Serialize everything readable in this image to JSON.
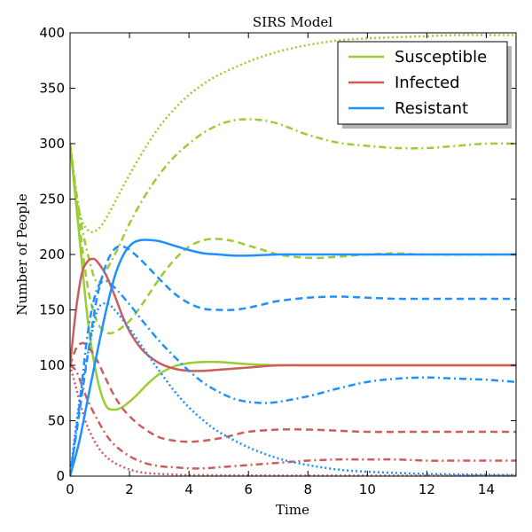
{
  "chart_data": {
    "type": "line",
    "title": "SIRS Model",
    "xlabel": "Time",
    "ylabel": "Number of People",
    "xlim": [
      0,
      15
    ],
    "ylim": [
      0,
      400
    ],
    "xticks": [
      0,
      2,
      4,
      6,
      8,
      10,
      12,
      14
    ],
    "yticks": [
      0,
      50,
      100,
      150,
      200,
      250,
      300,
      350,
      400
    ],
    "grid": false,
    "legend_position": "top-right",
    "legend": [
      {
        "label": "Susceptible",
        "color": "#9acd32"
      },
      {
        "label": "Infected",
        "color": "#cd5c5c"
      },
      {
        "label": "Resistant",
        "color": "#1e90ff"
      }
    ],
    "series": [
      {
        "group": "Susceptible",
        "color": "#9acd32",
        "style": "solid",
        "x": [
          0,
          0.3,
          0.6,
          0.9,
          1.2,
          1.5,
          1.8,
          2.2,
          2.6,
          3.0,
          3.5,
          4.0,
          4.5,
          5.0,
          5.5,
          6.0,
          7.0,
          8.0,
          10,
          12,
          15
        ],
        "y": [
          300,
          220,
          140,
          90,
          64,
          60,
          63,
          72,
          83,
          92,
          99,
          102,
          103,
          103,
          102,
          101,
          100,
          100,
          100,
          100,
          100
        ]
      },
      {
        "group": "Susceptible",
        "color": "#9acd32",
        "style": "dashed",
        "x": [
          0,
          0.3,
          0.6,
          0.9,
          1.2,
          1.5,
          2.0,
          2.5,
          3.0,
          3.5,
          4.0,
          4.5,
          5.0,
          5.5,
          6.0,
          6.5,
          7.0,
          7.5,
          8.0,
          8.5,
          9.0,
          10,
          11,
          12,
          15
        ],
        "y": [
          300,
          230,
          170,
          140,
          130,
          130,
          140,
          158,
          178,
          195,
          207,
          213,
          214,
          212,
          208,
          204,
          200,
          198,
          197,
          197,
          198,
          200,
          201,
          200,
          200
        ]
      },
      {
        "group": "Susceptible",
        "color": "#9acd32",
        "style": "dashdot",
        "x": [
          0,
          0.3,
          0.6,
          0.9,
          1.2,
          1.6,
          2.0,
          2.5,
          3.0,
          3.5,
          4.0,
          4.5,
          5.0,
          5.5,
          6.0,
          6.5,
          7.0,
          7.5,
          8.0,
          9.0,
          10,
          11,
          12,
          13,
          14,
          15
        ],
        "y": [
          300,
          240,
          200,
          175,
          185,
          205,
          228,
          252,
          272,
          288,
          300,
          310,
          317,
          321,
          322,
          321,
          318,
          313,
          308,
          301,
          298,
          296,
          296,
          298,
          300,
          300
        ]
      },
      {
        "group": "Susceptible",
        "color": "#9acd32",
        "style": "dotted",
        "x": [
          0,
          0.3,
          0.6,
          0.9,
          1.2,
          1.6,
          2.0,
          2.5,
          3.0,
          3.5,
          4.0,
          4.5,
          5.0,
          6.0,
          7.0,
          8.0,
          9.0,
          10,
          11,
          12,
          13,
          14,
          15
        ],
        "y": [
          300,
          240,
          222,
          222,
          232,
          252,
          272,
          295,
          315,
          331,
          344,
          354,
          362,
          374,
          383,
          389,
          393,
          395,
          396,
          397,
          398,
          398,
          398
        ]
      },
      {
        "group": "Infected",
        "color": "#cd5c5c",
        "style": "solid",
        "x": [
          0,
          0.2,
          0.4,
          0.6,
          0.75,
          0.9,
          1.2,
          1.5,
          1.8,
          2.1,
          2.5,
          3.0,
          3.5,
          4.0,
          4.5,
          5.0,
          6.0,
          7.0,
          8.0,
          10,
          12,
          15
        ],
        "y": [
          100,
          150,
          183,
          194,
          196,
          194,
          182,
          163,
          142,
          126,
          112,
          102,
          97,
          95,
          95,
          96,
          98,
          100,
          100,
          100,
          100,
          100
        ]
      },
      {
        "group": "Infected",
        "color": "#cd5c5c",
        "style": "dashed",
        "x": [
          0,
          0.2,
          0.4,
          0.6,
          0.9,
          1.2,
          1.5,
          1.8,
          2.2,
          2.6,
          3.0,
          3.5,
          4.0,
          4.5,
          5.0,
          5.5,
          6.0,
          7.0,
          8.0,
          9.0,
          10,
          12,
          15
        ],
        "y": [
          100,
          115,
          120,
          117,
          105,
          88,
          72,
          60,
          49,
          41,
          35,
          32,
          31,
          32,
          34,
          37,
          40,
          42,
          42,
          41,
          40,
          40,
          40
        ]
      },
      {
        "group": "Infected",
        "color": "#cd5c5c",
        "style": "dashdot",
        "x": [
          0,
          0.2,
          0.4,
          0.6,
          0.9,
          1.2,
          1.5,
          2.0,
          2.5,
          3.0,
          3.5,
          4.0,
          4.5,
          5.0,
          6.0,
          7.0,
          8.0,
          9.0,
          10,
          11,
          12,
          13,
          14,
          15
        ],
        "y": [
          100,
          95,
          82,
          68,
          52,
          38,
          28,
          18,
          12,
          9,
          8,
          7,
          7,
          8,
          10,
          12,
          14,
          15,
          15,
          15,
          14,
          14,
          14,
          14
        ]
      },
      {
        "group": "Infected",
        "color": "#cd5c5c",
        "style": "dotted",
        "x": [
          0,
          0.2,
          0.4,
          0.6,
          0.9,
          1.2,
          1.5,
          2.0,
          2.5,
          3.0,
          3.5,
          4.0,
          5.0,
          6.0,
          8.0,
          10,
          12,
          15
        ],
        "y": [
          100,
          80,
          60,
          44,
          28,
          18,
          12,
          6,
          3,
          2,
          1.5,
          1,
          0.8,
          0.6,
          0.5,
          0.5,
          0.5,
          0.5
        ]
      },
      {
        "group": "Resistant",
        "color": "#1e90ff",
        "style": "solid",
        "x": [
          0,
          0.3,
          0.6,
          0.9,
          1.2,
          1.5,
          1.8,
          2.1,
          2.4,
          2.7,
          3.0,
          3.5,
          4.0,
          4.5,
          5.0,
          5.5,
          6.0,
          7.0,
          8.0,
          10,
          12,
          15
        ],
        "y": [
          0,
          30,
          70,
          110,
          148,
          180,
          200,
          210,
          213,
          213,
          212,
          208,
          204,
          201,
          200,
          199,
          199,
          200,
          200,
          200,
          200,
          200
        ]
      },
      {
        "group": "Resistant",
        "color": "#1e90ff",
        "style": "dashed",
        "x": [
          0,
          0.3,
          0.6,
          0.9,
          1.2,
          1.5,
          1.8,
          2.1,
          2.5,
          3.0,
          3.5,
          4.0,
          4.5,
          5.0,
          5.5,
          6.0,
          6.5,
          7.0,
          8.0,
          9.0,
          10,
          11,
          12,
          15
        ],
        "y": [
          0,
          55,
          110,
          160,
          190,
          205,
          207,
          202,
          192,
          178,
          165,
          156,
          151,
          150,
          150,
          152,
          155,
          158,
          161,
          162,
          161,
          160,
          160,
          160
        ]
      },
      {
        "group": "Resistant",
        "color": "#1e90ff",
        "style": "dashdot",
        "x": [
          0,
          0.3,
          0.6,
          0.9,
          1.2,
          1.5,
          2.0,
          2.5,
          3.0,
          3.5,
          4.0,
          4.5,
          5.0,
          5.5,
          6.0,
          6.5,
          7.0,
          8.0,
          9.0,
          10,
          11,
          12,
          13,
          14,
          15
        ],
        "y": [
          0,
          60,
          130,
          168,
          176,
          170,
          155,
          138,
          122,
          108,
          95,
          84,
          76,
          70,
          67,
          66,
          67,
          72,
          79,
          85,
          88,
          89,
          88,
          87,
          85
        ]
      },
      {
        "group": "Resistant",
        "color": "#1e90ff",
        "style": "dotted",
        "x": [
          0,
          0.3,
          0.6,
          0.9,
          1.2,
          1.5,
          2.0,
          2.5,
          3.0,
          3.5,
          4.0,
          4.5,
          5.0,
          6.0,
          7.0,
          8.0,
          9.0,
          10,
          12,
          15
        ],
        "y": [
          0,
          65,
          110,
          148,
          156,
          150,
          133,
          114,
          95,
          77,
          62,
          50,
          40,
          26,
          16,
          10,
          6,
          4,
          2,
          1
        ]
      }
    ]
  }
}
